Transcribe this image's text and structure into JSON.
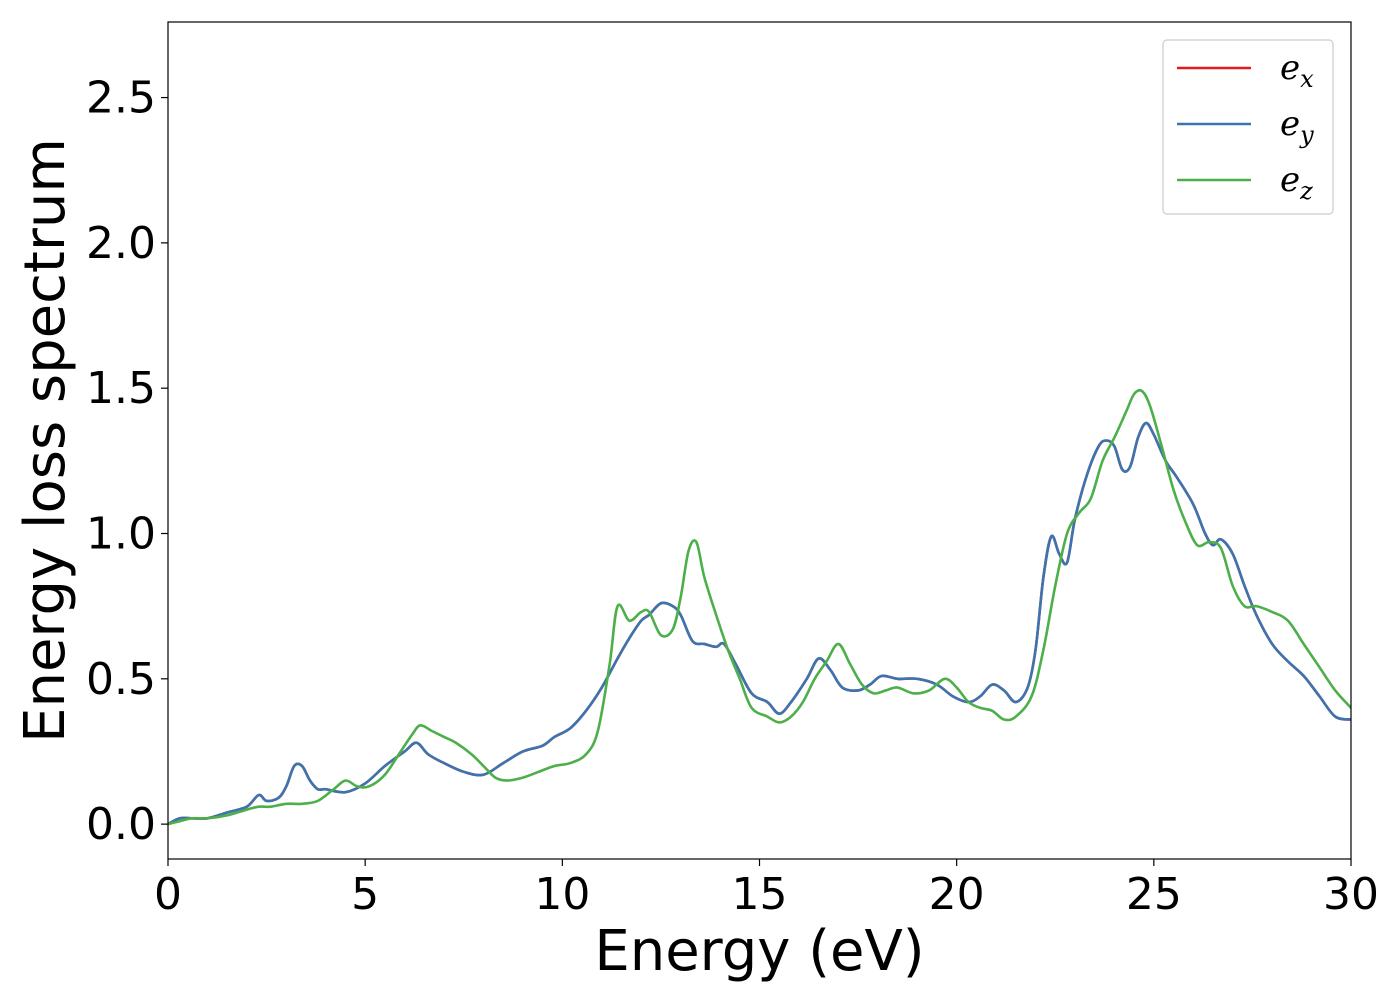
{
  "chart_data": {
    "type": "line",
    "xlabel": "Energy (eV)",
    "ylabel": "Energy loss spectrum",
    "xlim": [
      0,
      30
    ],
    "ylim": [
      -0.12,
      2.76
    ],
    "xticks": [
      0,
      5,
      10,
      15,
      20,
      25,
      30
    ],
    "xtick_labels": [
      "0",
      "5",
      "10",
      "15",
      "20",
      "25",
      "30"
    ],
    "yticks": [
      0.0,
      0.5,
      1.0,
      1.5,
      2.0,
      2.5
    ],
    "ytick_labels": [
      "0.0",
      "0.5",
      "1.0",
      "1.5",
      "2.0",
      "2.5"
    ],
    "grid": false,
    "legend_position": "top-right",
    "series": [
      {
        "name": "e",
        "sub": "x",
        "color": "#e41a1c",
        "x": [
          0,
          0.3,
          0.6,
          1.0,
          1.5,
          2.0,
          2.3,
          2.5,
          2.8,
          3.0,
          3.2,
          3.4,
          3.6,
          3.8,
          4.0,
          4.5,
          5.0,
          5.5,
          6.0,
          6.3,
          6.6,
          7.0,
          7.5,
          8.0,
          8.5,
          9.0,
          9.5,
          9.8,
          10.2,
          10.6,
          11.0,
          11.4,
          11.7,
          12.0,
          12.2,
          12.5,
          12.8,
          13.0,
          13.3,
          13.6,
          13.9,
          14.1,
          14.4,
          14.8,
          15.2,
          15.5,
          15.8,
          16.2,
          16.5,
          16.8,
          17.1,
          17.5,
          17.8,
          18.1,
          18.5,
          19.0,
          19.5,
          19.9,
          20.3,
          20.6,
          20.9,
          21.2,
          21.5,
          21.8,
          22.0,
          22.2,
          22.4,
          22.6,
          22.8,
          23.0,
          23.3,
          23.6,
          23.8,
          24.0,
          24.2,
          24.4,
          24.6,
          24.8,
          25.0,
          25.3,
          25.6,
          26.0,
          26.3,
          26.5,
          26.7,
          27.0,
          27.3,
          27.6,
          28.0,
          28.4,
          28.8,
          29.2,
          29.6,
          30.0
        ],
        "y": [
          0.0,
          0.02,
          0.02,
          0.02,
          0.04,
          0.06,
          0.1,
          0.08,
          0.09,
          0.13,
          0.2,
          0.2,
          0.15,
          0.12,
          0.12,
          0.11,
          0.14,
          0.2,
          0.25,
          0.28,
          0.24,
          0.21,
          0.18,
          0.17,
          0.21,
          0.25,
          0.27,
          0.3,
          0.33,
          0.39,
          0.47,
          0.57,
          0.64,
          0.7,
          0.72,
          0.76,
          0.75,
          0.72,
          0.63,
          0.62,
          0.61,
          0.62,
          0.55,
          0.45,
          0.42,
          0.38,
          0.42,
          0.5,
          0.57,
          0.53,
          0.47,
          0.46,
          0.48,
          0.51,
          0.5,
          0.5,
          0.48,
          0.44,
          0.42,
          0.44,
          0.48,
          0.46,
          0.42,
          0.47,
          0.6,
          0.85,
          0.99,
          0.93,
          0.9,
          1.05,
          1.2,
          1.3,
          1.32,
          1.3,
          1.22,
          1.23,
          1.33,
          1.38,
          1.34,
          1.25,
          1.19,
          1.1,
          1.0,
          0.96,
          0.98,
          0.93,
          0.82,
          0.72,
          0.62,
          0.56,
          0.51,
          0.44,
          0.37,
          0.36
        ]
      },
      {
        "name": "e",
        "sub": "y",
        "color": "#3a75b0",
        "x": [
          0,
          0.3,
          0.6,
          1.0,
          1.5,
          2.0,
          2.3,
          2.5,
          2.8,
          3.0,
          3.2,
          3.4,
          3.6,
          3.8,
          4.0,
          4.5,
          5.0,
          5.5,
          6.0,
          6.3,
          6.6,
          7.0,
          7.5,
          8.0,
          8.5,
          9.0,
          9.5,
          9.8,
          10.2,
          10.6,
          11.0,
          11.4,
          11.7,
          12.0,
          12.2,
          12.5,
          12.8,
          13.0,
          13.3,
          13.6,
          13.9,
          14.1,
          14.4,
          14.8,
          15.2,
          15.5,
          15.8,
          16.2,
          16.5,
          16.8,
          17.1,
          17.5,
          17.8,
          18.1,
          18.5,
          19.0,
          19.5,
          19.9,
          20.3,
          20.6,
          20.9,
          21.2,
          21.5,
          21.8,
          22.0,
          22.2,
          22.4,
          22.6,
          22.8,
          23.0,
          23.3,
          23.6,
          23.8,
          24.0,
          24.2,
          24.4,
          24.6,
          24.8,
          25.0,
          25.3,
          25.6,
          26.0,
          26.3,
          26.5,
          26.7,
          27.0,
          27.3,
          27.6,
          28.0,
          28.4,
          28.8,
          29.2,
          29.6,
          30.0
        ],
        "y": [
          0.0,
          0.02,
          0.02,
          0.02,
          0.04,
          0.06,
          0.1,
          0.08,
          0.09,
          0.13,
          0.2,
          0.2,
          0.15,
          0.12,
          0.12,
          0.11,
          0.14,
          0.2,
          0.25,
          0.28,
          0.24,
          0.21,
          0.18,
          0.17,
          0.21,
          0.25,
          0.27,
          0.3,
          0.33,
          0.39,
          0.47,
          0.57,
          0.64,
          0.7,
          0.72,
          0.76,
          0.75,
          0.72,
          0.63,
          0.62,
          0.61,
          0.62,
          0.55,
          0.45,
          0.42,
          0.38,
          0.42,
          0.5,
          0.57,
          0.53,
          0.47,
          0.46,
          0.48,
          0.51,
          0.5,
          0.5,
          0.48,
          0.44,
          0.42,
          0.44,
          0.48,
          0.46,
          0.42,
          0.47,
          0.6,
          0.85,
          0.99,
          0.93,
          0.9,
          1.05,
          1.2,
          1.3,
          1.32,
          1.3,
          1.22,
          1.23,
          1.33,
          1.38,
          1.34,
          1.25,
          1.19,
          1.1,
          1.0,
          0.96,
          0.98,
          0.93,
          0.82,
          0.72,
          0.62,
          0.56,
          0.51,
          0.44,
          0.37,
          0.36
        ]
      },
      {
        "name": "e",
        "sub": "z",
        "color": "#4daf4a",
        "x": [
          0,
          0.3,
          0.6,
          1.0,
          1.5,
          2.0,
          2.3,
          2.6,
          3.0,
          3.4,
          3.8,
          4.2,
          4.5,
          4.8,
          5.1,
          5.5,
          5.9,
          6.2,
          6.4,
          6.7,
          7.0,
          7.3,
          7.7,
          8.0,
          8.3,
          8.6,
          9.0,
          9.4,
          9.8,
          10.2,
          10.6,
          10.9,
          11.2,
          11.4,
          11.7,
          12.0,
          12.2,
          12.5,
          12.8,
          13.0,
          13.2,
          13.4,
          13.6,
          13.9,
          14.2,
          14.5,
          14.8,
          15.2,
          15.5,
          15.8,
          16.1,
          16.4,
          16.7,
          17.0,
          17.3,
          17.6,
          17.9,
          18.2,
          18.5,
          18.9,
          19.3,
          19.7,
          20.0,
          20.3,
          20.6,
          20.9,
          21.2,
          21.5,
          21.9,
          22.2,
          22.5,
          22.8,
          23.1,
          23.4,
          23.7,
          24.0,
          24.3,
          24.5,
          24.7,
          24.9,
          25.2,
          25.5,
          25.8,
          26.1,
          26.4,
          26.7,
          27.0,
          27.3,
          27.6,
          28.0,
          28.4,
          28.8,
          29.2,
          29.6,
          30.0
        ],
        "y": [
          0.0,
          0.01,
          0.02,
          0.02,
          0.03,
          0.05,
          0.06,
          0.06,
          0.07,
          0.07,
          0.08,
          0.12,
          0.15,
          0.13,
          0.13,
          0.17,
          0.25,
          0.31,
          0.34,
          0.32,
          0.3,
          0.28,
          0.24,
          0.2,
          0.16,
          0.15,
          0.16,
          0.18,
          0.2,
          0.21,
          0.24,
          0.32,
          0.55,
          0.75,
          0.7,
          0.73,
          0.73,
          0.65,
          0.67,
          0.78,
          0.94,
          0.97,
          0.85,
          0.72,
          0.6,
          0.5,
          0.4,
          0.37,
          0.35,
          0.37,
          0.42,
          0.5,
          0.56,
          0.62,
          0.55,
          0.48,
          0.45,
          0.46,
          0.47,
          0.45,
          0.46,
          0.5,
          0.47,
          0.42,
          0.4,
          0.39,
          0.36,
          0.37,
          0.44,
          0.6,
          0.82,
          1.0,
          1.07,
          1.12,
          1.25,
          1.33,
          1.42,
          1.48,
          1.49,
          1.44,
          1.3,
          1.15,
          1.04,
          0.96,
          0.97,
          0.95,
          0.82,
          0.75,
          0.75,
          0.73,
          0.7,
          0.62,
          0.54,
          0.46,
          0.4
        ]
      }
    ]
  }
}
